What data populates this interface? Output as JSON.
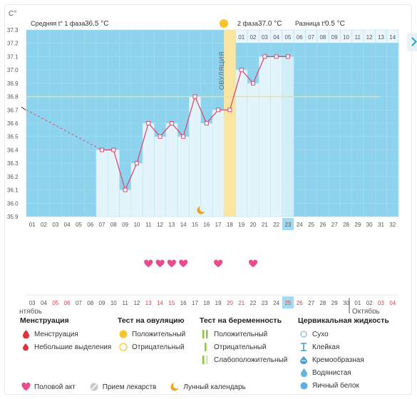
{
  "axis_unit": "С°",
  "phase1": {
    "label": "Средняя t° 1 фаза",
    "value": "36.5 °C"
  },
  "phase2": {
    "label": "2 фаза",
    "value": "37.0 °C"
  },
  "diff": {
    "label": "Разница t°",
    "value": "0.5 °C"
  },
  "ovulation_label": "ОВУЛЯЦИЯ",
  "y_ticks": [
    "37.3",
    "37.2",
    "37.1",
    "37.0",
    "36.9",
    "36.8",
    "36.7",
    "36.6",
    "36.5",
    "36.4",
    "36.3",
    "36.2",
    "36.1",
    "36.0",
    "35.9"
  ],
  "cycle_days": [
    "01",
    "02",
    "03",
    "04",
    "05",
    "06",
    "07",
    "08",
    "09",
    "10",
    "11",
    "12",
    "13",
    "14",
    "15",
    "16",
    "17",
    "18",
    "19",
    "20",
    "21",
    "22",
    "23",
    "24",
    "25",
    "26",
    "27",
    "28",
    "29",
    "30",
    "31",
    "32"
  ],
  "phase2_days": [
    "01",
    "02",
    "03",
    "04",
    "05",
    "06",
    "07",
    "08",
    "09",
    "10",
    "11",
    "12",
    "13",
    "14"
  ],
  "dates": [
    "03",
    "04",
    "05",
    "06",
    "07",
    "08",
    "09",
    "10",
    "11",
    "12",
    "13",
    "14",
    "15",
    "16",
    "17",
    "18",
    "19",
    "20",
    "21",
    "22",
    "23",
    "24",
    "25",
    "26",
    "27",
    "28",
    "29",
    "30",
    "01",
    "02",
    "03",
    "04"
  ],
  "month_left": "нтябрь",
  "month_right": "Октябрь",
  "chart_data": {
    "type": "line",
    "x": [
      7,
      8,
      9,
      10,
      11,
      12,
      13,
      14,
      15,
      16,
      17,
      18,
      19,
      20,
      21,
      22,
      23
    ],
    "values": [
      36.4,
      36.4,
      36.1,
      36.3,
      36.6,
      36.5,
      36.6,
      36.5,
      36.8,
      36.6,
      36.7,
      36.7,
      37.0,
      36.9,
      37.1,
      37.1,
      37.1
    ],
    "coverline": 36.8,
    "ovulation_day": 18,
    "current_day": 23,
    "intercourse_days": [
      11,
      12,
      13,
      14,
      17,
      20
    ],
    "moon_day": 16,
    "ylim": [
      35.9,
      37.3
    ],
    "colors": {
      "bg": "#8dd3ee",
      "bar": "#e4f4fb",
      "line": "#d94b74",
      "coverline": "#e6e29a",
      "ovulation": "#fbe6a1",
      "selected": "#a4d9ee",
      "heart": "#ea4a8e"
    }
  },
  "legend": {
    "menstruation": {
      "title": "Менструация",
      "items": [
        "Менструация",
        "Небольшие выделения"
      ]
    },
    "ovulation_test": {
      "title": "Тест на овуляцию",
      "items": [
        "Положительный",
        "Отрицательный"
      ]
    },
    "pregnancy_test": {
      "title": "Тест на беременность",
      "items": [
        "Положительный",
        "Отрицательный",
        "Слабоположительный"
      ]
    },
    "cervical": {
      "title": "Цервикальная жидкость",
      "items": [
        "Сухо",
        "Клейкая",
        "Кремообразная",
        "Водянистая",
        "Яичный белок"
      ]
    },
    "bottom": [
      "Половой акт",
      "Прием лекарств",
      "Лунный календарь"
    ]
  }
}
